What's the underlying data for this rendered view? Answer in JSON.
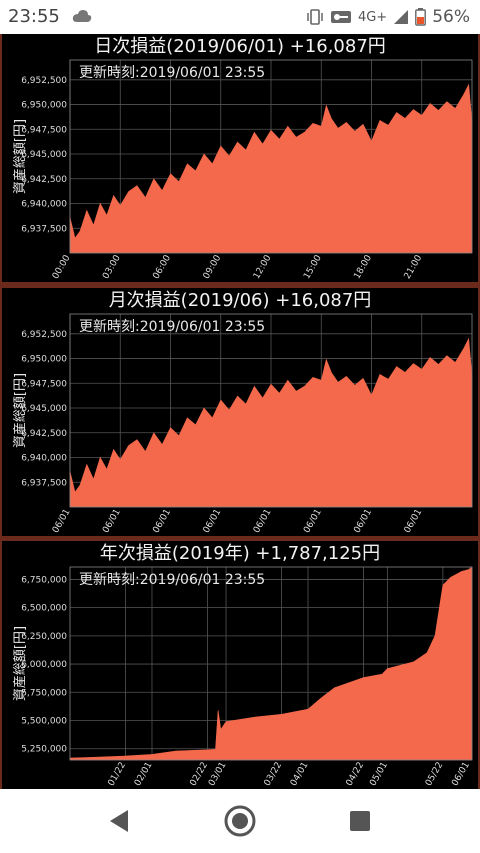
{
  "status": {
    "time": "23:55",
    "network": "4G+",
    "battery": "56%",
    "icons": [
      "cloud-icon",
      "vibrate-icon",
      "vpn-key-icon",
      "signal-icon",
      "battery-icon"
    ]
  },
  "update_text": "更新時刻:2019/06/01 23:55",
  "ylabel": "資産総額[円]",
  "colors": {
    "area": "#f4694c",
    "background": "#000000",
    "grid": "#555555"
  },
  "panels": [
    {
      "title": "日次損益(2019/06/01) +16,087円",
      "chart_data": {
        "type": "area",
        "title": "日次損益(2019/06/01) +16,087円",
        "ylabel": "資産総額[円]",
        "ylim": [
          6935000,
          6954500
        ],
        "yticks": [
          "6,937,500",
          "6,940,000",
          "6,942,500",
          "6,945,000",
          "6,947,500",
          "6,950,000",
          "6,952,500"
        ],
        "ytick_values": [
          6937500,
          6940000,
          6942500,
          6945000,
          6947500,
          6950000,
          6952500
        ],
        "xticks": [
          "00:00",
          "03:00",
          "06:00",
          "09:00",
          "12:00",
          "15:00",
          "18:00",
          "21:00"
        ],
        "xlim": [
          0,
          24
        ],
        "grid": true,
        "series": [
          {
            "x": [
              0,
              0.3,
              0.6,
              1,
              1.4,
              1.8,
              2.2,
              2.6,
              3,
              3.5,
              4,
              4.5,
              5,
              5.5,
              6,
              6.5,
              7,
              7.5,
              8,
              8.5,
              9,
              9.5,
              10,
              10.5,
              11,
              11.5,
              12,
              12.5,
              13,
              13.5,
              14,
              14.5,
              15,
              15.3,
              15.6,
              16,
              16.5,
              17,
              17.5,
              18,
              18.5,
              19,
              19.5,
              20,
              20.5,
              21,
              21.5,
              22,
              22.5,
              23,
              23.5,
              23.8,
              24
            ],
            "values": [
              6938600,
              6936500,
              6937200,
              6939300,
              6937800,
              6940000,
              6938800,
              6940800,
              6939800,
              6941200,
              6941800,
              6940600,
              6942500,
              6941300,
              6943000,
              6942200,
              6944000,
              6943300,
              6945000,
              6944000,
              6945800,
              6944800,
              6946200,
              6945400,
              6947200,
              6946000,
              6947400,
              6946500,
              6947800,
              6946700,
              6947200,
              6948100,
              6947800,
              6949900,
              6948600,
              6947600,
              6948200,
              6947300,
              6948000,
              6946300,
              6948400,
              6947900,
              6949200,
              6948600,
              6949500,
              6948900,
              6950100,
              6949400,
              6950300,
              6949600,
              6951000,
              6952000,
              6948200
            ]
          }
        ]
      }
    },
    {
      "title": "月次損益(2019/06) +16,087円",
      "chart_data": {
        "type": "area",
        "title": "月次損益(2019/06) +16,087円",
        "ylabel": "資産総額[円]",
        "ylim": [
          6935000,
          6954500
        ],
        "yticks": [
          "6,937,500",
          "6,940,000",
          "6,942,500",
          "6,945,000",
          "6,947,500",
          "6,950,000",
          "6,952,500"
        ],
        "ytick_values": [
          6937500,
          6940000,
          6942500,
          6945000,
          6947500,
          6950000,
          6952500
        ],
        "xticks": [
          "06/01",
          "06/01",
          "06/01",
          "06/01",
          "06/01",
          "06/01",
          "06/01",
          "06/01"
        ],
        "xlim": [
          0,
          24
        ],
        "grid": true,
        "series": [
          {
            "x": [
              0,
              0.3,
              0.6,
              1,
              1.4,
              1.8,
              2.2,
              2.6,
              3,
              3.5,
              4,
              4.5,
              5,
              5.5,
              6,
              6.5,
              7,
              7.5,
              8,
              8.5,
              9,
              9.5,
              10,
              10.5,
              11,
              11.5,
              12,
              12.5,
              13,
              13.5,
              14,
              14.5,
              15,
              15.3,
              15.6,
              16,
              16.5,
              17,
              17.5,
              18,
              18.5,
              19,
              19.5,
              20,
              20.5,
              21,
              21.5,
              22,
              22.5,
              23,
              23.5,
              23.8,
              24
            ],
            "values": [
              6938600,
              6936500,
              6937200,
              6939300,
              6937800,
              6940000,
              6938800,
              6940800,
              6939800,
              6941200,
              6941800,
              6940600,
              6942500,
              6941300,
              6943000,
              6942200,
              6944000,
              6943300,
              6945000,
              6944000,
              6945800,
              6944800,
              6946200,
              6945400,
              6947200,
              6946000,
              6947400,
              6946500,
              6947800,
              6946700,
              6947200,
              6948100,
              6947800,
              6949900,
              6948600,
              6947600,
              6948200,
              6947300,
              6948000,
              6946300,
              6948400,
              6947900,
              6949200,
              6948600,
              6949500,
              6948900,
              6950100,
              6949400,
              6950300,
              6949600,
              6951000,
              6952000,
              6948200
            ]
          }
        ]
      }
    },
    {
      "title": "年次損益(2019年) +1,787,125円",
      "chart_data": {
        "type": "area",
        "title": "年次損益(2019年) +1,787,125円",
        "ylabel": "資産総額[円]",
        "ylim": [
          5150000,
          6860000
        ],
        "yticks": [
          "5,250,000",
          "5,500,000",
          "5,750,000",
          "6,000,000",
          "6,250,000",
          "6,500,000",
          "6,750,000"
        ],
        "ytick_values": [
          5250000,
          5500000,
          5750000,
          6000000,
          6250000,
          6500000,
          6750000
        ],
        "xticks": [
          "01/22",
          "02/01",
          "02/22",
          "03/01",
          "03/22",
          "04/01",
          "04/22",
          "05/01",
          "05/22",
          "06/01"
        ],
        "xtick_days": [
          21,
          31,
          52,
          59,
          80,
          90,
          111,
          120,
          141,
          151
        ],
        "xlim": [
          0,
          152
        ],
        "grid": true,
        "series": [
          {
            "x": [
              0,
              10,
              21,
              31,
              40,
              52,
              55,
              56,
              57,
              59,
              70,
              80,
              90,
              95,
              100,
              111,
              118,
              120,
              130,
              135,
              138,
              141,
              144,
              148,
              151,
              152
            ],
            "values": [
              5168000,
              5175000,
              5185000,
              5200000,
              5230000,
              5240000,
              5245000,
              5590000,
              5420000,
              5490000,
              5530000,
              5555000,
              5600000,
              5700000,
              5790000,
              5880000,
              5910000,
              5960000,
              6020000,
              6100000,
              6250000,
              6700000,
              6770000,
              6820000,
              6840000,
              6860000
            ]
          }
        ]
      }
    }
  ],
  "nav": {
    "back": "back-icon",
    "home": "home-icon",
    "recents": "recents-icon"
  }
}
